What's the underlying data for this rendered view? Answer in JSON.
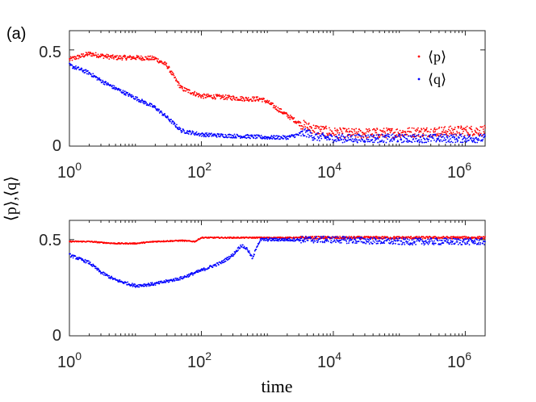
{
  "panel_label": "(a)",
  "ylabel": "⟨p⟩,⟨q⟩",
  "xlabel": "time",
  "legend": [
    {
      "label": "⟨p⟩",
      "color": "#ff0000"
    },
    {
      "label": "⟨q⟩",
      "color": "#0000ff"
    }
  ],
  "xtick_labels": [
    {
      "base": "10",
      "exp": "0"
    },
    {
      "base": "10",
      "exp": "2"
    },
    {
      "base": "10",
      "exp": "4"
    },
    {
      "base": "10",
      "exp": "6"
    }
  ],
  "top_ytick_labels": [
    "0",
    "0.5"
  ],
  "bottom_ytick_labels": [
    "0",
    "0.5"
  ],
  "chart_data": [
    {
      "type": "scatter",
      "panel": "top",
      "xscale": "log",
      "xlim": [
        1,
        2000000
      ],
      "ylim": [
        0,
        0.6
      ],
      "yticks": [
        0,
        0.5
      ],
      "xticks": [
        1,
        100,
        10000,
        1000000
      ],
      "legend_position": "top-right",
      "series": [
        {
          "name": "⟨p⟩",
          "color": "#ff0000",
          "x": [
            1,
            2,
            3,
            5,
            10,
            20,
            30,
            40,
            50,
            100,
            200,
            500,
            800,
            1000,
            2000,
            3000,
            4000,
            5000,
            7000,
            10000,
            20000,
            100000,
            1000000,
            2000000
          ],
          "y": [
            0.45,
            0.48,
            0.47,
            0.46,
            0.46,
            0.455,
            0.42,
            0.35,
            0.3,
            0.26,
            0.255,
            0.245,
            0.245,
            0.23,
            0.16,
            0.12,
            0.1,
            0.09,
            0.08,
            0.07,
            0.065,
            0.07,
            0.08,
            0.08
          ],
          "noise": 0.012
        },
        {
          "name": "⟨q⟩",
          "color": "#0000ff",
          "x": [
            1,
            2,
            3,
            5,
            10,
            20,
            30,
            40,
            50,
            100,
            200,
            500,
            1000,
            2000,
            3000,
            4000,
            5000,
            10000,
            100000,
            1000000,
            2000000
          ],
          "y": [
            0.42,
            0.38,
            0.34,
            0.3,
            0.25,
            0.2,
            0.15,
            0.11,
            0.08,
            0.06,
            0.055,
            0.05,
            0.045,
            0.045,
            0.06,
            0.07,
            0.05,
            0.04,
            0.04,
            0.04,
            0.04
          ],
          "noise": 0.01
        }
      ]
    },
    {
      "type": "scatter",
      "panel": "bottom",
      "xscale": "log",
      "xlim": [
        1,
        2000000
      ],
      "ylim": [
        0,
        0.6
      ],
      "yticks": [
        0,
        0.5
      ],
      "xticks": [
        1,
        100,
        10000,
        1000000
      ],
      "series": [
        {
          "name": "⟨p⟩",
          "color": "#ff0000",
          "x": [
            1,
            2,
            3,
            5,
            10,
            20,
            50,
            80,
            100,
            200,
            1000,
            10000,
            100000,
            2000000
          ],
          "y": [
            0.49,
            0.49,
            0.485,
            0.48,
            0.48,
            0.49,
            0.495,
            0.49,
            0.51,
            0.51,
            0.51,
            0.51,
            0.51,
            0.51
          ],
          "noise": 0.003
        },
        {
          "name": "⟨q⟩",
          "color": "#0000ff",
          "x": [
            1,
            2,
            3,
            5,
            10,
            20,
            50,
            100,
            200,
            300,
            400,
            500,
            600,
            700,
            800,
            1000,
            10000,
            100000,
            1000000,
            2000000
          ],
          "y": [
            0.42,
            0.38,
            0.33,
            0.29,
            0.26,
            0.27,
            0.3,
            0.34,
            0.38,
            0.42,
            0.47,
            0.45,
            0.4,
            0.47,
            0.5,
            0.5,
            0.5,
            0.49,
            0.49,
            0.49
          ],
          "noise": 0.008
        }
      ]
    }
  ]
}
